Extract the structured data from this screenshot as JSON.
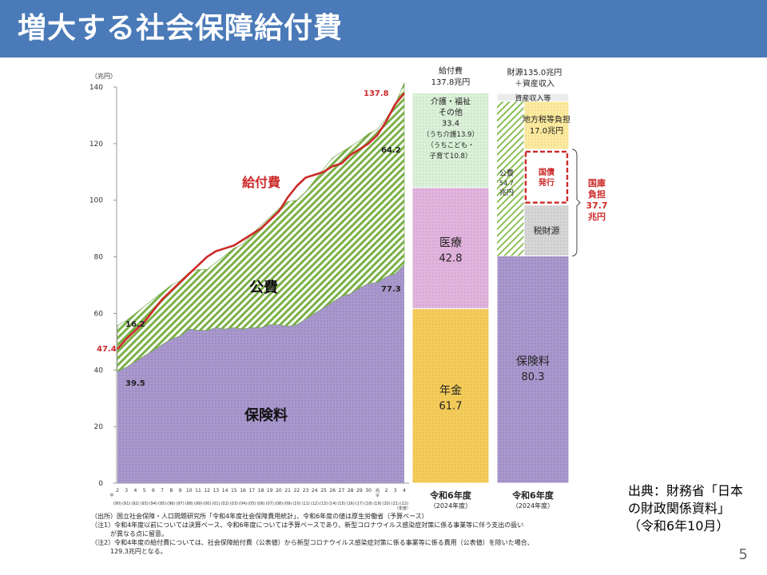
{
  "slide": {
    "title": "増大する社会保障給付費",
    "page_number": "5",
    "source_lines": [
      "出典：財務省「日本",
      "の財政関係資料」",
      "（令和6年10月）"
    ]
  },
  "chart_data": [
    {
      "type": "area",
      "title": "",
      "ylabel": "（兆円）",
      "xlabel": "（年度）",
      "ylim": [
        0,
        140
      ],
      "yticks": [
        0,
        20,
        40,
        60,
        80,
        100,
        120,
        140
      ],
      "x_ticks_heisei": [
        "2",
        "3",
        "4",
        "5",
        "6",
        "7",
        "8",
        "9",
        "10",
        "11",
        "12",
        "13",
        "14",
        "15",
        "16",
        "17",
        "18",
        "19",
        "20",
        "21",
        "22",
        "23",
        "24",
        "25",
        "26",
        "27",
        "28",
        "29",
        "30",
        "元",
        "2",
        "3",
        "4"
      ],
      "x_ticks_western": [
        "(90)",
        "(91)",
        "(92)",
        "(93)",
        "(94)",
        "(95)",
        "(96)",
        "(97)",
        "(98)",
        "(99)",
        "(00)",
        "(01)",
        "(02)",
        "(03)",
        "(04)",
        "(05)",
        "(06)",
        "(07)",
        "(08)",
        "(09)",
        "(10)",
        "(11)",
        "(12)",
        "(13)",
        "(14)",
        "(15)",
        "(16)",
        "(17)",
        "(18)",
        "(19)",
        "(20)",
        "(21)",
        "(22)"
      ],
      "era_markers": {
        "heisei": "平",
        "reiwa": "令"
      },
      "series": [
        {
          "name": "保険料",
          "values": [
            39.5,
            41,
            43,
            45,
            47,
            49,
            51,
            52,
            54.5,
            54,
            54,
            55,
            54.5,
            55,
            54.5,
            55,
            55,
            56,
            56,
            55.5,
            56,
            58,
            60,
            62,
            64,
            66,
            67,
            69,
            70.5,
            71,
            73,
            74,
            77.3
          ],
          "color": "#a898cc"
        },
        {
          "name": "公費",
          "values": [
            16.2,
            16.5,
            17,
            17.5,
            18,
            18.5,
            19,
            19.5,
            20,
            21.5,
            21.5,
            23,
            26,
            28,
            30,
            33,
            36,
            38,
            41,
            44,
            44,
            45,
            47,
            49,
            51,
            51,
            52,
            52,
            53,
            54,
            56,
            60,
            64.2
          ],
          "color": "#7ab048"
        },
        {
          "name": "給付費",
          "values": [
            47.4,
            51,
            54,
            57,
            61,
            65,
            68,
            71,
            74,
            77,
            80,
            82,
            83,
            84,
            86,
            88,
            90,
            93,
            96,
            101,
            105,
            108,
            109,
            110,
            112,
            113,
            116,
            118,
            120,
            123,
            128,
            134,
            137.8
          ],
          "color": "#cc2a2a"
        }
      ],
      "labels": {
        "benefit": "給付費",
        "public": "公費",
        "insurance": "保険料",
        "val_47_4": "47.4",
        "val_16_2": "16.2",
        "val_39_5": "39.5",
        "val_137_8": "137.8",
        "val_64_2": "64.2",
        "val_77_3": "77.3"
      }
    },
    {
      "type": "bar",
      "title": "給付費",
      "subtitle": "137.8兆円",
      "category": "令和6年度",
      "category_sub": "（2024年度）",
      "segments": [
        {
          "name": "年金",
          "value": 61.7,
          "color": "#f4cc5c",
          "label": "年金",
          "value_label": "61.7"
        },
        {
          "name": "医療",
          "value": 42.8,
          "color": "#e0b4dc",
          "label": "医療",
          "value_label": "42.8"
        },
        {
          "name": "介護・福祉その他",
          "value": 33.4,
          "color": "#d4ecd2",
          "lines": [
            "介護・福祉",
            "その他",
            "33.4",
            "（うち介護13.9）",
            "（うちこども・",
            "子育て10.8）"
          ]
        }
      ]
    },
    {
      "type": "bar",
      "title": "財源135.0兆円",
      "subtitle": "＋資産収入",
      "category": "令和6年度",
      "category_sub": "（2024年度）",
      "segments": [
        {
          "name": "保険料",
          "value": 80.3,
          "color": "#a898cc",
          "label": "保険料",
          "value_label": "80.3"
        },
        {
          "name": "税財源",
          "value": 18.0,
          "color": "#d6d6d6",
          "label": "税財源"
        },
        {
          "name": "国債発行",
          "value": 19.7,
          "color": "#ffffff",
          "lines": [
            "国債",
            "発行"
          ]
        },
        {
          "name": "地方税等負担",
          "value": 17.0,
          "color": "#fbeaa0",
          "lines": [
            "地方税等負担",
            "17.0兆円"
          ]
        },
        {
          "name": "資産収入等",
          "value": 2.8,
          "color": "#e8e8e8",
          "label": "資産収入等"
        }
      ],
      "public_label": [
        "公費",
        "54.7",
        "兆円"
      ],
      "national_label": [
        "国庫",
        "負担",
        "37.7",
        "兆円"
      ]
    }
  ],
  "notes": [
    "（出所）国立社会保障・人口問題研究所「令和4年度社会保障費用統計」、令和6年度の値は厚生労働省（予算ベース）",
    "（注1）令和4年度以前については決算ベース、令和6年度については予算ベースであり、新型コロナウイルス感染症対策に係る事業等に伴う支出の扱い",
    "　　　が異なる点に留意。",
    "（注2）令和4年度の給付費については、社会保障給付費（公表値）から新型コロナウイルス感染症対策に係る事業等に係る費用（公表値）を除いた場合、",
    "　　　129.3兆円となる。"
  ],
  "colors": {
    "header": "#4a7ab8",
    "insurance": "#a898cc",
    "public": "#7ab048",
    "benefit": "#cc2a2a",
    "pension": "#f4cc5c",
    "medical": "#e0b4dc",
    "care": "#d4ecd2"
  }
}
